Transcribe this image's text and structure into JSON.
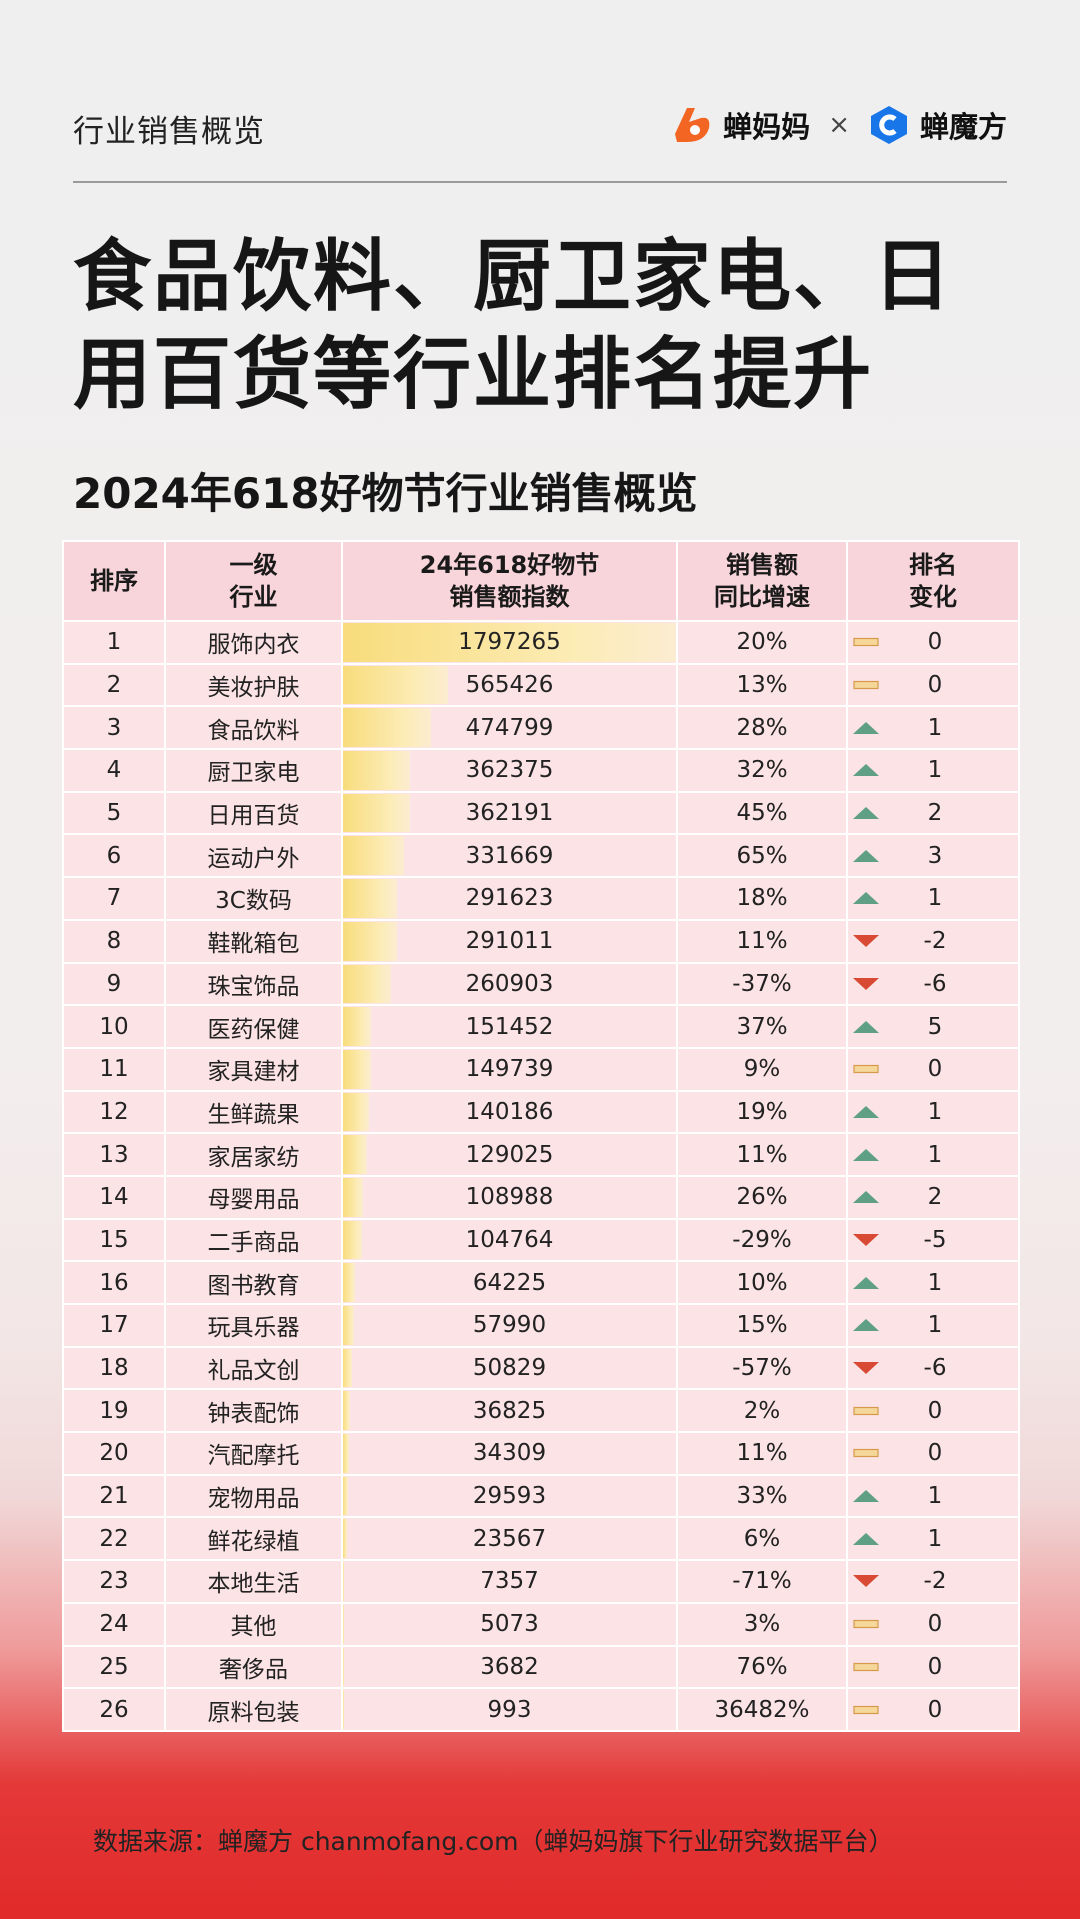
{
  "header": {
    "title": "行业销售概览",
    "brand1": "蝉妈妈",
    "separator": "×",
    "brand2": "蝉魔方"
  },
  "headline": "食品饮料、厨卫家电、日用百货等行业排名提升",
  "subtitle": "2024年618好物节行业销售概览",
  "chart_data": {
    "type": "table",
    "columns": [
      "排序",
      "一级行业",
      "24年618好物节销售额指数",
      "销售额同比增速",
      "排名变化"
    ],
    "rows": [
      {
        "rank": "1",
        "industry": "服饰内衣",
        "index": 1797265,
        "yoy": "20%",
        "change": "0",
        "dir": "flat"
      },
      {
        "rank": "2",
        "industry": "美妆护肤",
        "index": 565426,
        "yoy": "13%",
        "change": "0",
        "dir": "flat"
      },
      {
        "rank": "3",
        "industry": "食品饮料",
        "index": 474799,
        "yoy": "28%",
        "change": "1",
        "dir": "up"
      },
      {
        "rank": "4",
        "industry": "厨卫家电",
        "index": 362375,
        "yoy": "32%",
        "change": "1",
        "dir": "up"
      },
      {
        "rank": "5",
        "industry": "日用百货",
        "index": 362191,
        "yoy": "45%",
        "change": "2",
        "dir": "up"
      },
      {
        "rank": "6",
        "industry": "运动户外",
        "index": 331669,
        "yoy": "65%",
        "change": "3",
        "dir": "up"
      },
      {
        "rank": "7",
        "industry": "3C数码",
        "index": 291623,
        "yoy": "18%",
        "change": "1",
        "dir": "up"
      },
      {
        "rank": "8",
        "industry": "鞋靴箱包",
        "index": 291011,
        "yoy": "11%",
        "change": "-2",
        "dir": "down"
      },
      {
        "rank": "9",
        "industry": "珠宝饰品",
        "index": 260903,
        "yoy": "-37%",
        "change": "-6",
        "dir": "down"
      },
      {
        "rank": "10",
        "industry": "医药保健",
        "index": 151452,
        "yoy": "37%",
        "change": "5",
        "dir": "up"
      },
      {
        "rank": "11",
        "industry": "家具建材",
        "index": 149739,
        "yoy": "9%",
        "change": "0",
        "dir": "flat"
      },
      {
        "rank": "12",
        "industry": "生鲜蔬果",
        "index": 140186,
        "yoy": "19%",
        "change": "1",
        "dir": "up"
      },
      {
        "rank": "13",
        "industry": "家居家纺",
        "index": 129025,
        "yoy": "11%",
        "change": "1",
        "dir": "up"
      },
      {
        "rank": "14",
        "industry": "母婴用品",
        "index": 108988,
        "yoy": "26%",
        "change": "2",
        "dir": "up"
      },
      {
        "rank": "15",
        "industry": "二手商品",
        "index": 104764,
        "yoy": "-29%",
        "change": "-5",
        "dir": "down"
      },
      {
        "rank": "16",
        "industry": "图书教育",
        "index": 64225,
        "yoy": "10%",
        "change": "1",
        "dir": "up"
      },
      {
        "rank": "17",
        "industry": "玩具乐器",
        "index": 57990,
        "yoy": "15%",
        "change": "1",
        "dir": "up"
      },
      {
        "rank": "18",
        "industry": "礼品文创",
        "index": 50829,
        "yoy": "-57%",
        "change": "-6",
        "dir": "down"
      },
      {
        "rank": "19",
        "industry": "钟表配饰",
        "index": 36825,
        "yoy": "2%",
        "change": "0",
        "dir": "flat"
      },
      {
        "rank": "20",
        "industry": "汽配摩托",
        "index": 34309,
        "yoy": "11%",
        "change": "0",
        "dir": "flat"
      },
      {
        "rank": "21",
        "industry": "宠物用品",
        "index": 29593,
        "yoy": "33%",
        "change": "1",
        "dir": "up"
      },
      {
        "rank": "22",
        "industry": "鲜花绿植",
        "index": 23567,
        "yoy": "6%",
        "change": "1",
        "dir": "up"
      },
      {
        "rank": "23",
        "industry": "本地生活",
        "index": 7357,
        "yoy": "-71%",
        "change": "-2",
        "dir": "down"
      },
      {
        "rank": "24",
        "industry": "其他",
        "index": 5073,
        "yoy": "3%",
        "change": "0",
        "dir": "flat"
      },
      {
        "rank": "25",
        "industry": "奢侈品",
        "index": 3682,
        "yoy": "76%",
        "change": "0",
        "dir": "flat"
      },
      {
        "rank": "26",
        "industry": "原料包装",
        "index": 993,
        "yoy": "36482%",
        "change": "0",
        "dir": "flat"
      }
    ]
  },
  "table_headers": {
    "rank": "排序",
    "industry_l1": "一级",
    "industry_l2": "行业",
    "index_l1": "24年618好物节",
    "index_l2": "销售额指数",
    "yoy_l1": "销售额",
    "yoy_l2": "同比增速",
    "change_l1": "排名",
    "change_l2": "变化"
  },
  "colors": {
    "up": "#5e9f86",
    "down": "#d94a35",
    "flat_fill": "#f6d79a",
    "flat_border": "#d69a4a",
    "bar": "#f8dc7c",
    "header_bg": "#f7d5da",
    "row_bg": "#fbe3e6",
    "brand_orange": "#f26522",
    "brand_blue": "#1976e8"
  },
  "source": "数据来源：蝉魔方 chanmofang.com（蝉妈妈旗下行业研究数据平台）"
}
